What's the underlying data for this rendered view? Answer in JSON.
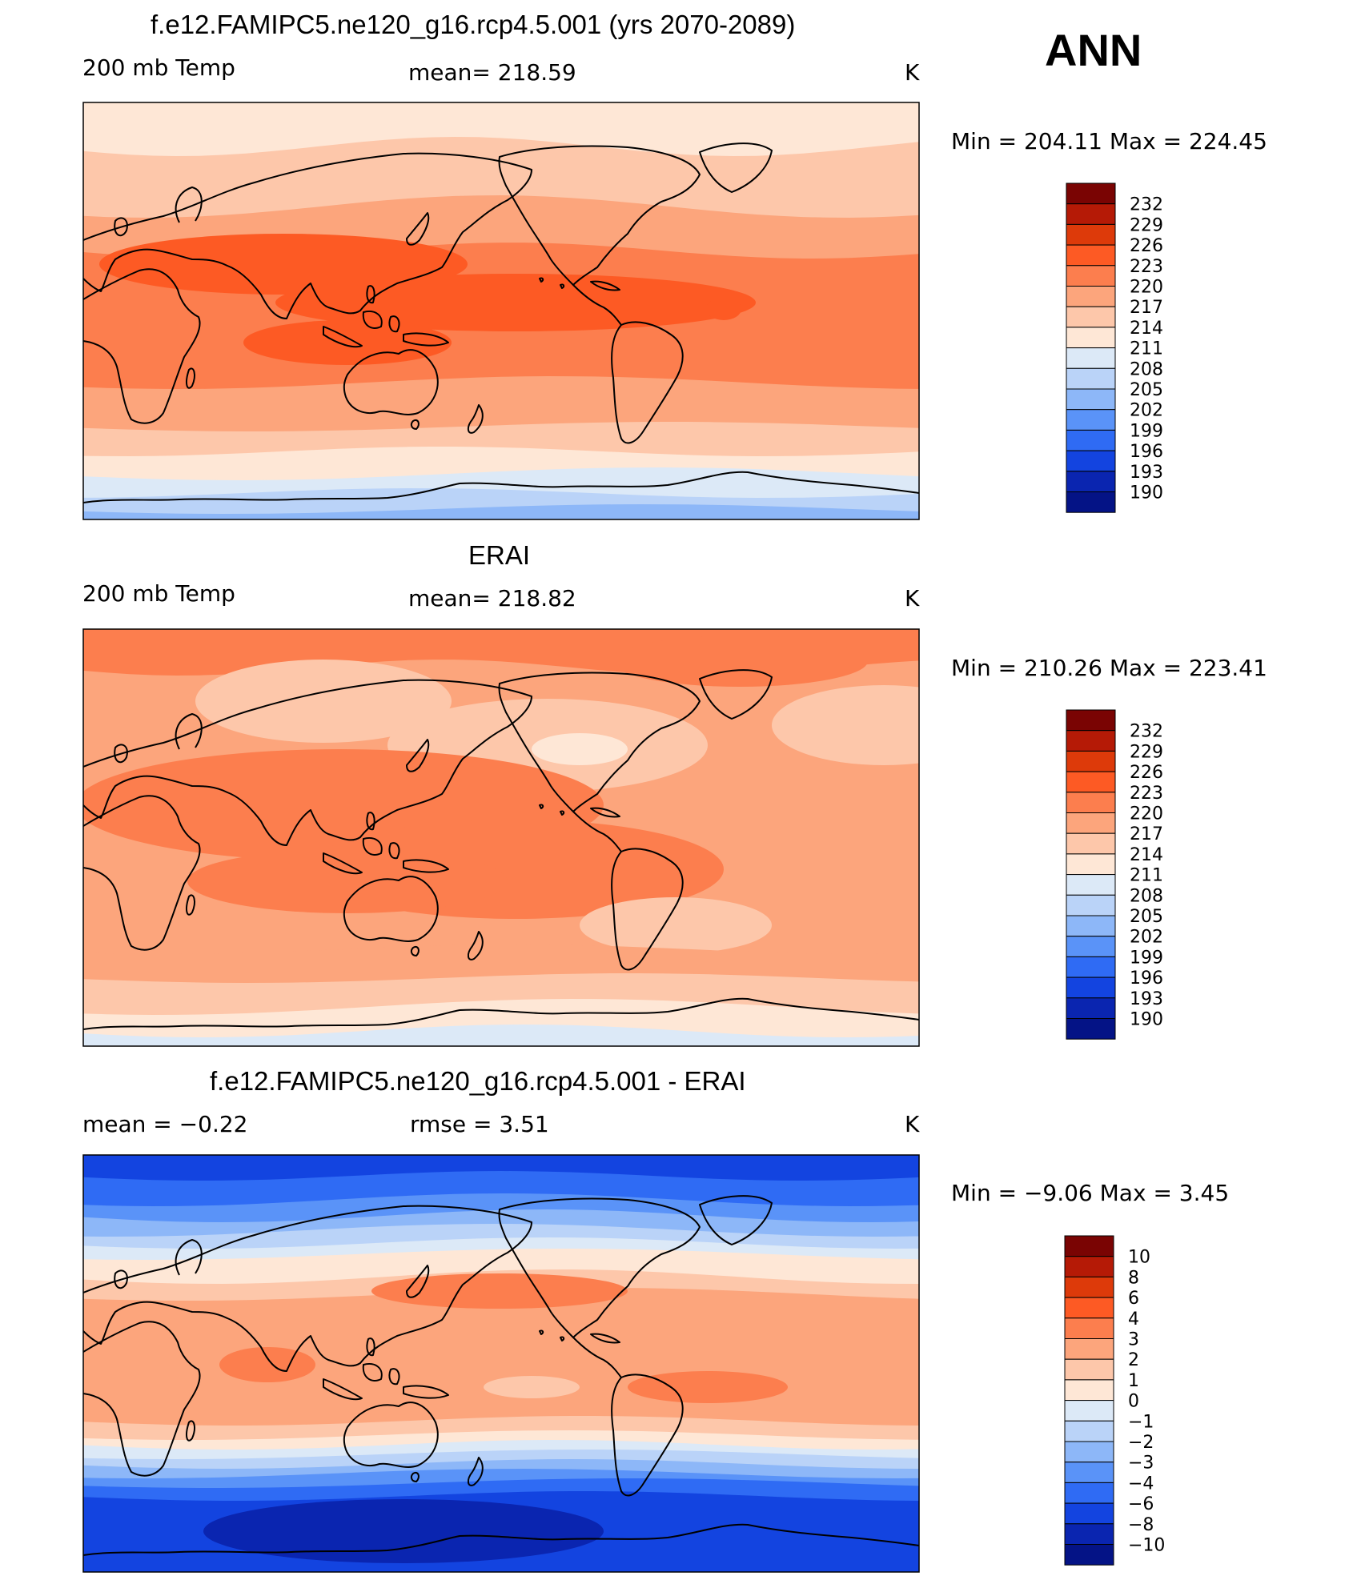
{
  "season": "ANN",
  "panels": [
    {
      "title": "f.e12.FAMIPC5.ne120_g16.rcp4.5.001 (yrs 2070-2089)",
      "left_label": "200 mb Temp",
      "center_label": "mean= 218.59",
      "units": "K",
      "minmax": "Min = 204.11 Max = 224.45"
    },
    {
      "title": "ERAI",
      "left_label": "200 mb Temp",
      "center_label": "mean= 218.82",
      "units": "K",
      "minmax": "Min = 210.26 Max = 223.41"
    },
    {
      "title": "f.e12.FAMIPC5.ne120_g16.rcp4.5.001 - ERAI",
      "left_label": "mean =   −0.22",
      "center_label": "rmse =    3.51",
      "units": "K",
      "minmax": "Min =   −9.06 Max =    3.45"
    }
  ],
  "colorbar_abs": {
    "labels": [
      "232",
      "229",
      "226",
      "223",
      "220",
      "217",
      "214",
      "211",
      "208",
      "205",
      "202",
      "199",
      "196",
      "193",
      "190"
    ],
    "colors": [
      "#7a0403",
      "#b51a06",
      "#dd3a0a",
      "#fd5a24",
      "#fc7e4e",
      "#fca57c",
      "#fdc7aa",
      "#fee7d6",
      "#dce9f7",
      "#bad3f8",
      "#8db7f8",
      "#5a93f8",
      "#2f6bf4",
      "#1344e0",
      "#0a25b0",
      "#041386"
    ]
  },
  "colorbar_diff": {
    "labels": [
      "10",
      "8",
      "6",
      "4",
      "3",
      "2",
      "1",
      "0",
      "−1",
      "−2",
      "−3",
      "−4",
      "−6",
      "−8",
      "−10"
    ],
    "colors": [
      "#7a0403",
      "#b51a06",
      "#dd3a0a",
      "#fd5a24",
      "#fc7e4e",
      "#fca57c",
      "#fdc7aa",
      "#fee7d6",
      "#dce9f7",
      "#bad3f8",
      "#8db7f8",
      "#5a93f8",
      "#2f6bf4",
      "#1344e0",
      "#0a25b0",
      "#041386"
    ]
  },
  "chart_data": [
    {
      "type": "heatmap",
      "title": "f.e12.FAMIPC5.ne120_g16.rcp4.5.001 (yrs 2070-2089)",
      "variable": "200 mb Temp",
      "units": "K",
      "mean": 218.59,
      "min": 204.11,
      "max": 224.45,
      "contour_levels": [
        190,
        193,
        196,
        199,
        202,
        205,
        208,
        211,
        214,
        217,
        220,
        223,
        226,
        229,
        232
      ]
    },
    {
      "type": "heatmap",
      "title": "ERAI",
      "variable": "200 mb Temp",
      "units": "K",
      "mean": 218.82,
      "min": 210.26,
      "max": 223.41,
      "contour_levels": [
        190,
        193,
        196,
        199,
        202,
        205,
        208,
        211,
        214,
        217,
        220,
        223,
        226,
        229,
        232
      ]
    },
    {
      "type": "heatmap",
      "title": "f.e12.FAMIPC5.ne120_g16.rcp4.5.001 - ERAI",
      "units": "K",
      "mean": -0.22,
      "rmse": 3.51,
      "min": -9.06,
      "max": 3.45,
      "contour_levels": [
        -10,
        -8,
        -6,
        -4,
        -3,
        -2,
        -1,
        0,
        1,
        2,
        3,
        4,
        6,
        8,
        10
      ]
    }
  ]
}
